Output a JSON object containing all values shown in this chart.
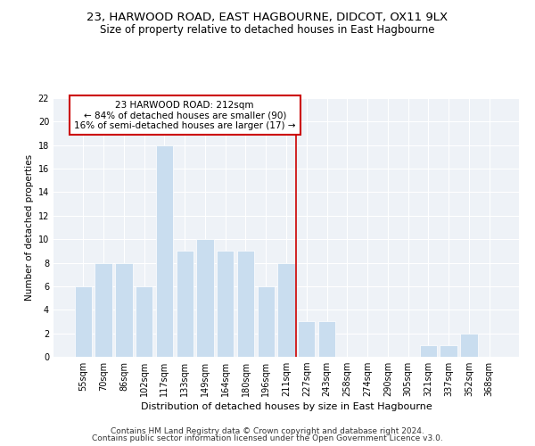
{
  "title1": "23, HARWOOD ROAD, EAST HAGBOURNE, DIDCOT, OX11 9LX",
  "title2": "Size of property relative to detached houses in East Hagbourne",
  "xlabel": "Distribution of detached houses by size in East Hagbourne",
  "ylabel": "Number of detached properties",
  "categories": [
    "55sqm",
    "70sqm",
    "86sqm",
    "102sqm",
    "117sqm",
    "133sqm",
    "149sqm",
    "164sqm",
    "180sqm",
    "196sqm",
    "211sqm",
    "227sqm",
    "243sqm",
    "258sqm",
    "274sqm",
    "290sqm",
    "305sqm",
    "321sqm",
    "337sqm",
    "352sqm",
    "368sqm"
  ],
  "values": [
    6,
    8,
    8,
    6,
    18,
    9,
    10,
    9,
    9,
    6,
    8,
    3,
    3,
    0,
    0,
    0,
    0,
    1,
    1,
    2,
    0
  ],
  "bar_color": "#c9ddef",
  "bar_edge_color": "#ffffff",
  "property_line_x": 10.5,
  "property_label": "23 HARWOOD ROAD: 212sqm",
  "annotation_line1": "← 84% of detached houses are smaller (90)",
  "annotation_line2": "16% of semi-detached houses are larger (17) →",
  "annotation_box_color": "#cc0000",
  "line_color": "#cc0000",
  "ylim": [
    0,
    22
  ],
  "yticks": [
    0,
    2,
    4,
    6,
    8,
    10,
    12,
    14,
    16,
    18,
    20,
    22
  ],
  "background_color": "#eef2f7",
  "footer1": "Contains HM Land Registry data © Crown copyright and database right 2024.",
  "footer2": "Contains public sector information licensed under the Open Government Licence v3.0.",
  "title1_fontsize": 9.5,
  "title2_fontsize": 8.5,
  "xlabel_fontsize": 8,
  "ylabel_fontsize": 7.5,
  "tick_fontsize": 7,
  "footer_fontsize": 6.5,
  "ann_fontsize": 7.5
}
